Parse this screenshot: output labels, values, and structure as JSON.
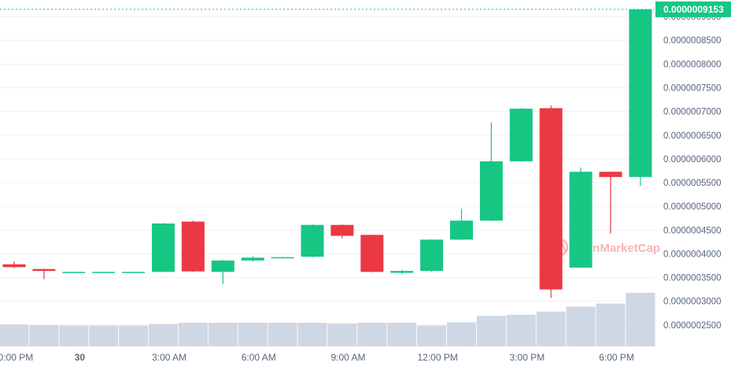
{
  "chart_data": {
    "type": "candlestick",
    "watermark_text": "CoinMarketCap",
    "current_price_label": "0.0000009153",
    "y_ticks": [
      "0.0000002500",
      "0.0000003000",
      "0.0000003500",
      "0.0000004000",
      "0.0000004500",
      "0.0000005000",
      "0.0000005500",
      "0.0000006000",
      "0.0000006500",
      "0.0000007000",
      "0.0000007500",
      "0.0000008000",
      "0.0000008500",
      "0.0000009000"
    ],
    "y_tick_values": [
      2.5e-07,
      3e-07,
      3.5e-07,
      4e-07,
      4.5e-07,
      5e-07,
      5.5e-07,
      6e-07,
      6.5e-07,
      7e-07,
      7.5e-07,
      8e-07,
      8.5e-07,
      9e-07
    ],
    "x_ticks": [
      "0:00 PM",
      "30",
      "3:00 AM",
      "6:00 AM",
      "9:00 AM",
      "12:00 PM",
      "3:00 PM",
      "6:00 PM"
    ],
    "x_tick_index": [
      0.05,
      2.2,
      5.2,
      8.2,
      11.2,
      14.2,
      17.2,
      20.2
    ],
    "y_range": [
      2.05e-07,
      9.35e-07
    ],
    "candles": [
      {
        "o": 3.78e-07,
        "h": 3.84e-07,
        "l": 3.7e-07,
        "c": 3.72e-07
      },
      {
        "o": 3.68e-07,
        "h": 3.69e-07,
        "l": 3.47e-07,
        "c": 3.64e-07
      },
      {
        "o": 3.62e-07,
        "h": 3.625e-07,
        "l": 3.615e-07,
        "c": 3.62e-07
      },
      {
        "o": 3.62e-07,
        "h": 3.625e-07,
        "l": 3.615e-07,
        "c": 3.62e-07
      },
      {
        "o": 3.62e-07,
        "h": 3.625e-07,
        "l": 3.615e-07,
        "c": 3.62e-07
      },
      {
        "o": 3.62e-07,
        "h": 4.65e-07,
        "l": 3.62e-07,
        "c": 4.64e-07
      },
      {
        "o": 4.68e-07,
        "h": 4.7e-07,
        "l": 3.62e-07,
        "c": 3.63e-07
      },
      {
        "o": 3.62e-07,
        "h": 3.87e-07,
        "l": 3.36e-07,
        "c": 3.86e-07
      },
      {
        "o": 3.86e-07,
        "h": 3.95e-07,
        "l": 3.84e-07,
        "c": 3.92e-07
      },
      {
        "o": 3.92e-07,
        "h": 3.94e-07,
        "l": 3.91e-07,
        "c": 3.93e-07
      },
      {
        "o": 3.94e-07,
        "h": 4.62e-07,
        "l": 3.93e-07,
        "c": 4.61e-07
      },
      {
        "o": 4.61e-07,
        "h": 4.62e-07,
        "l": 4.33e-07,
        "c": 4.38e-07
      },
      {
        "o": 4.4e-07,
        "h": 4.4e-07,
        "l": 3.61e-07,
        "c": 3.62e-07
      },
      {
        "o": 3.6e-07,
        "h": 3.66e-07,
        "l": 3.58e-07,
        "c": 3.64e-07
      },
      {
        "o": 3.64e-07,
        "h": 4.31e-07,
        "l": 3.62e-07,
        "c": 4.3e-07
      },
      {
        "o": 4.3e-07,
        "h": 4.95e-07,
        "l": 4.29e-07,
        "c": 4.7e-07
      },
      {
        "o": 4.7e-07,
        "h": 6.77e-07,
        "l": 4.69e-07,
        "c": 5.95e-07
      },
      {
        "o": 5.95e-07,
        "h": 7.07e-07,
        "l": 5.94e-07,
        "c": 7.06e-07
      },
      {
        "o": 7.07e-07,
        "h": 7.13e-07,
        "l": 3.07e-07,
        "c": 3.25e-07
      },
      {
        "o": 3.71e-07,
        "h": 5.82e-07,
        "l": 3.7e-07,
        "c": 5.73e-07
      },
      {
        "o": 5.73e-07,
        "h": 5.74e-07,
        "l": 4.43e-07,
        "c": 5.62e-07
      },
      {
        "o": 5.62e-07,
        "h": 9.153e-07,
        "l": 5.43e-07,
        "c": 9.153e-07
      }
    ],
    "volume_relative": [
      0.41,
      0.4,
      0.39,
      0.39,
      0.39,
      0.42,
      0.44,
      0.44,
      0.44,
      0.44,
      0.44,
      0.43,
      0.44,
      0.44,
      0.39,
      0.45,
      0.57,
      0.59,
      0.65,
      0.74,
      0.8,
      1.0
    ],
    "up_color": "#16c784",
    "down_color": "#ea3943",
    "volume_color": "#cfd6e4",
    "grid_color": "#f0f1f4",
    "label_color": "#58667e",
    "price_line_color": "#16c784",
    "watermark_color": "#f6b5b9"
  }
}
